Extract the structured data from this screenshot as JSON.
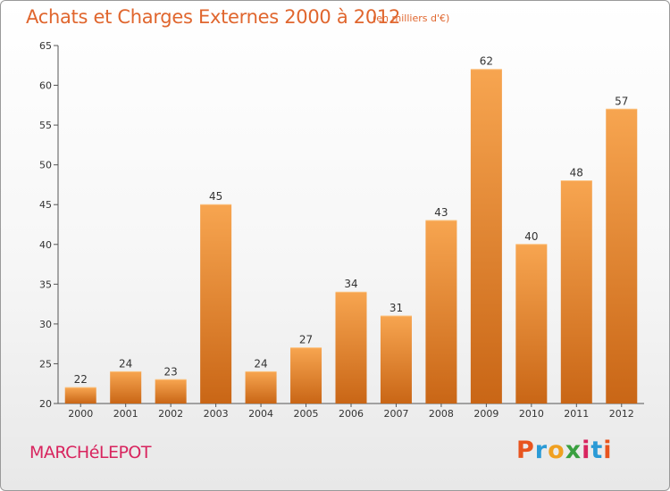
{
  "header": {
    "title": "Achats et Charges Externes 2000 à 2012",
    "subtitle": "(en milliers d'€)"
  },
  "footer": {
    "commune": "MARCHéLEPOT",
    "brand_letters": [
      "P",
      "r",
      "o",
      "x",
      "i",
      "t",
      "i"
    ],
    "brand_colors": [
      "#e8541e",
      "#2a9ad6",
      "#f0a020",
      "#3aa040",
      "#d8245e",
      "#2a9ad6",
      "#e8541e"
    ]
  },
  "chart_data": {
    "type": "bar",
    "title": "Achats et Charges Externes 2000 à 2012",
    "subtitle": "(en milliers d'€)",
    "categories": [
      "2000",
      "2001",
      "2002",
      "2003",
      "2004",
      "2005",
      "2006",
      "2007",
      "2008",
      "2009",
      "2010",
      "2011",
      "2012"
    ],
    "values": [
      22,
      24,
      23,
      45,
      24,
      27,
      34,
      31,
      43,
      62,
      40,
      48,
      57
    ],
    "ylim": [
      20,
      65
    ],
    "yticks": [
      20,
      25,
      30,
      35,
      40,
      45,
      50,
      55,
      60,
      65
    ],
    "grid": false,
    "bar_color_top": "#f7a550",
    "bar_color_bottom": "#c96616"
  }
}
